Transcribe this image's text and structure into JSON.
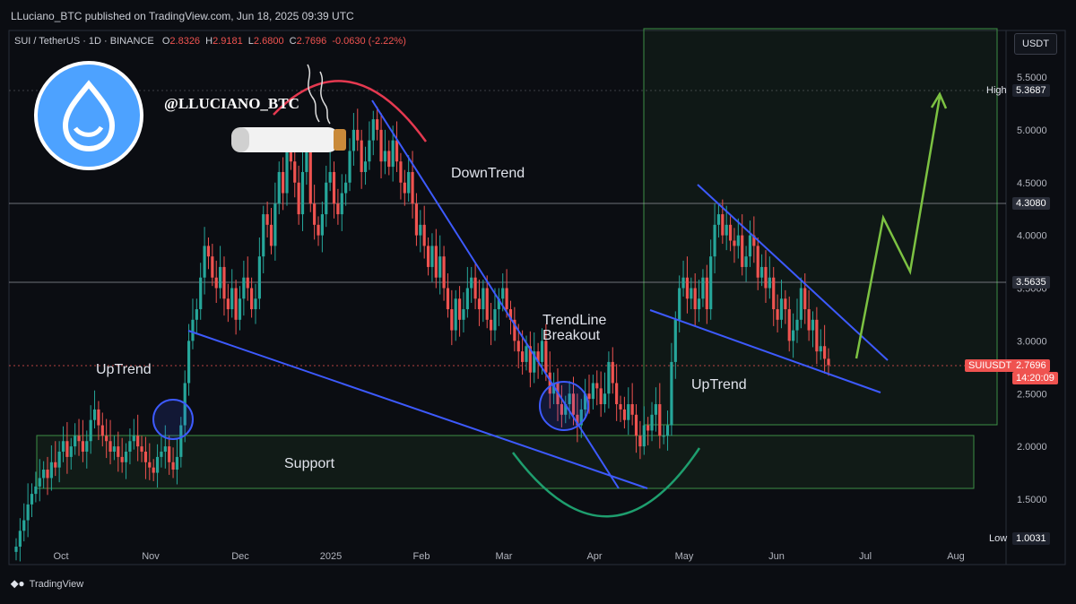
{
  "header": {
    "publisher_line": "LLuciano_BTC published on TradingView.com, Jun 18, 2025 09:39 UTC"
  },
  "symbol": {
    "name": "SUI / TetherUS · 1D · BINANCE",
    "o_label": "O",
    "o_value": "2.8326",
    "h_label": "H",
    "h_value": "2.9181",
    "l_label": "L",
    "l_value": "2.6800",
    "c_label": "C",
    "c_value": "2.7696",
    "change": "-0.0630 (-2.22%)"
  },
  "currency_button": "USDT",
  "handle": "@LLUCIANO_BTC",
  "annotations": {
    "downtrend": "DownTrend",
    "uptrend_left": "UpTrend",
    "uptrend_right": "UpTrend",
    "breakout_line1": "TrendLine",
    "breakout_line2": "Breakout",
    "support": "Support"
  },
  "price_labels": {
    "high_label": "High",
    "high_value": "5.3687",
    "low_label": "Low",
    "low_value": "1.0031",
    "level_upper": "4.3080",
    "level_mid": "3.5635",
    "symbol_tag": "SUIUSDT",
    "last_price": "2.7696",
    "countdown": "14:20:09"
  },
  "footer": {
    "brand": "TradingView"
  },
  "colors": {
    "up": "#26a69a",
    "down": "#ef5350",
    "trendline": "#3d5afe",
    "zone": "#4caf50",
    "arc_red": "#e53950",
    "arc_green": "#1e9e6e",
    "arrow": "#7cc242",
    "logo_blue": "#4da2ff"
  },
  "chart_data": {
    "type": "candlestick",
    "y_ticks": [
      "5.5000",
      "5.0000",
      "4.5000",
      "4.0000",
      "3.5000",
      "3.0000",
      "2.5000",
      "2.0000",
      "1.5000"
    ],
    "x_ticks": [
      "Oct",
      "Nov",
      "Dec",
      "2025",
      "Feb",
      "Mar",
      "Apr",
      "May",
      "Jun",
      "Jul",
      "Aug"
    ],
    "ylim": [
      0.95,
      5.85
    ],
    "horizontal_levels": [
      4.308,
      3.5635
    ],
    "support_zone": [
      1.6,
      2.1
    ],
    "right_box": [
      2.2,
      5.9
    ],
    "closes": [
      1.05,
      1.2,
      1.3,
      1.45,
      1.55,
      1.62,
      1.7,
      1.78,
      1.7,
      1.85,
      1.8,
      1.95,
      2.05,
      1.9,
      2.0,
      2.1,
      2.05,
      1.95,
      2.05,
      2.25,
      2.35,
      2.2,
      2.1,
      2.05,
      1.95,
      2.0,
      1.9,
      1.85,
      1.95,
      2.05,
      2.1,
      2.0,
      1.95,
      1.85,
      1.8,
      1.75,
      1.9,
      1.95,
      2.0,
      1.85,
      1.78,
      1.9,
      2.2,
      2.6,
      3.0,
      3.2,
      3.3,
      3.6,
      3.9,
      3.8,
      3.6,
      3.5,
      3.7,
      3.4,
      3.3,
      3.5,
      3.2,
      3.4,
      3.6,
      3.5,
      3.3,
      3.4,
      3.8,
      4.2,
      4.1,
      3.9,
      4.3,
      4.6,
      4.4,
      4.8,
      4.7,
      4.5,
      4.2,
      4.6,
      4.8,
      4.3,
      4.1,
      4.0,
      4.2,
      4.5,
      4.6,
      4.3,
      4.2,
      4.4,
      4.5,
      4.8,
      5.0,
      4.9,
      4.6,
      4.7,
      4.9,
      5.1,
      5.0,
      4.7,
      4.8,
      4.65,
      4.9,
      4.7,
      4.5,
      4.4,
      4.6,
      4.3,
      4.0,
      4.1,
      3.9,
      3.7,
      3.9,
      3.6,
      3.8,
      3.5,
      3.3,
      3.1,
      3.4,
      3.2,
      3.3,
      3.5,
      3.6,
      3.4,
      3.3,
      3.5,
      3.2,
      3.1,
      3.3,
      3.4,
      3.5,
      3.3,
      3.2,
      3.0,
      2.9,
      2.8,
      2.95,
      2.7,
      2.9,
      2.8,
      3.0,
      2.7,
      2.5,
      2.6,
      2.4,
      2.3,
      2.4,
      2.5,
      2.3,
      2.2,
      2.35,
      2.5,
      2.45,
      2.6,
      2.55,
      2.4,
      2.5,
      2.8,
      2.6,
      2.4,
      2.35,
      2.25,
      2.4,
      2.3,
      2.1,
      2.0,
      2.2,
      2.15,
      2.3,
      2.4,
      2.1,
      2.1,
      2.2,
      2.8,
      3.2,
      3.5,
      3.6,
      3.4,
      3.5,
      3.3,
      3.4,
      3.6,
      3.3,
      3.8,
      4.1,
      4.2,
      4.0,
      4.1,
      3.95,
      3.9,
      4.0,
      3.7,
      3.8,
      4.0,
      3.9,
      3.6,
      3.7,
      3.5,
      3.6,
      3.3,
      3.2,
      3.4,
      3.3,
      3.0,
      3.1,
      3.2,
      3.5,
      3.3,
      3.1,
      3.2,
      2.9,
      2.95,
      2.83,
      2.77
    ]
  }
}
